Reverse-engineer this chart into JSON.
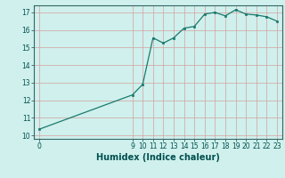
{
  "x": [
    0,
    9,
    10,
    11,
    12,
    13,
    14,
    15,
    16,
    17,
    18,
    19,
    20,
    21,
    22,
    23
  ],
  "y": [
    10.35,
    12.3,
    12.9,
    15.55,
    15.25,
    15.55,
    16.1,
    16.2,
    16.9,
    17.0,
    16.8,
    17.15,
    16.9,
    16.85,
    16.75,
    16.5
  ],
  "line_color": "#1a7a6e",
  "marker_color": "#1a7a6e",
  "bg_color": "#cff0ec",
  "grid_color_major": "#d4a0a0",
  "xlabel": "Humidex (Indice chaleur)",
  "xlabel_fontsize": 7,
  "xlabel_color": "#005050",
  "tick_label_color": "#005050",
  "ylim": [
    9.8,
    17.4
  ],
  "xlim": [
    -0.5,
    23.5
  ],
  "yticks": [
    10,
    11,
    12,
    13,
    14,
    15,
    16,
    17
  ],
  "xticks": [
    0,
    9,
    10,
    11,
    12,
    13,
    14,
    15,
    16,
    17,
    18,
    19,
    20,
    21,
    22,
    23
  ]
}
